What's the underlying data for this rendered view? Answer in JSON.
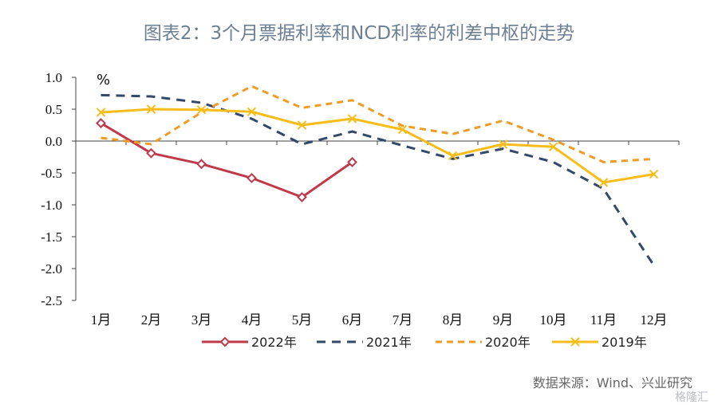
{
  "chart_data": {
    "type": "line",
    "title": "图表2：3个月票据利率和NCD利率的利差中枢的走势",
    "y_unit": "%",
    "categories": [
      "1月",
      "2月",
      "3月",
      "4月",
      "5月",
      "6月",
      "7月",
      "8月",
      "9月",
      "10月",
      "11月",
      "12月"
    ],
    "ylim": [
      -2.5,
      1.0
    ],
    "y_ticks": [
      "1.0",
      "0.5",
      "0.0",
      "-0.5",
      "-1.0",
      "-1.5",
      "-2.0",
      "-2.5"
    ],
    "series": [
      {
        "name": "2022年",
        "color": "#c0394a",
        "style": "solid-diamond",
        "values": [
          0.28,
          -0.19,
          -0.36,
          -0.58,
          -0.88,
          -0.33,
          null,
          null,
          null,
          null,
          null,
          null
        ]
      },
      {
        "name": "2021年",
        "color": "#34496a",
        "style": "dashed",
        "values": [
          0.72,
          0.7,
          0.6,
          0.35,
          -0.05,
          0.15,
          -0.07,
          -0.28,
          -0.12,
          -0.33,
          -0.75,
          -1.95
        ]
      },
      {
        "name": "2020年",
        "color": "#ed9d27",
        "style": "dashed",
        "values": [
          0.05,
          -0.05,
          0.45,
          0.86,
          0.52,
          0.64,
          0.24,
          0.11,
          0.32,
          0.02,
          -0.33,
          -0.28
        ]
      },
      {
        "name": "2019年",
        "color": "#f8bd1a",
        "style": "solid-x",
        "values": [
          0.45,
          0.5,
          0.49,
          0.46,
          0.25,
          0.35,
          0.18,
          -0.23,
          -0.05,
          -0.09,
          -0.65,
          -0.52
        ]
      }
    ],
    "source": "数据来源：Wind、兴业研究",
    "watermark": "格隆汇"
  }
}
